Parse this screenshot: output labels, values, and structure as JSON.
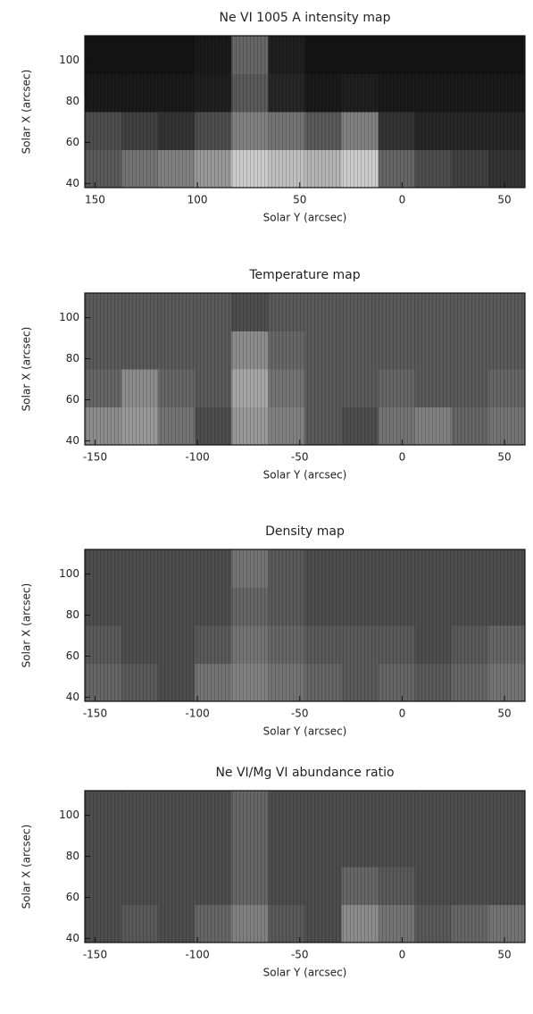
{
  "chart_data": [
    {
      "type": "heatmap",
      "title": "Ne VI 1005 A intensity map",
      "x_label": "Solar Y (arcsec)",
      "y_label": "Solar X (arcsec)",
      "xlim": [
        -155,
        60
      ],
      "ylim": [
        38,
        112
      ],
      "xticks": [
        {
          "value": -150,
          "label": "150"
        },
        {
          "value": -100,
          "label": "100"
        },
        {
          "value": -50,
          "label": "50"
        },
        0,
        50
      ],
      "yticks": [
        40,
        60,
        80,
        100
      ],
      "z": [
        [
          0.35,
          0.45,
          0.5,
          0.6,
          0.8,
          0.75,
          0.7,
          0.8,
          0.4,
          0.3,
          0.25,
          0.2
        ],
        [
          0.3,
          0.25,
          0.2,
          0.3,
          0.5,
          0.45,
          0.35,
          0.5,
          0.2,
          0.15,
          0.15,
          0.15
        ],
        [
          0.1,
          0.1,
          0.1,
          0.12,
          0.35,
          0.15,
          0.1,
          0.12,
          0.1,
          0.1,
          0.1,
          0.1
        ],
        [
          0.08,
          0.08,
          0.08,
          0.1,
          0.4,
          0.12,
          0.08,
          0.08,
          0.08,
          0.08,
          0.08,
          0.08
        ]
      ]
    },
    {
      "type": "heatmap",
      "title": "Temperature map",
      "x_label": "Solar Y (arcsec)",
      "y_label": "Solar X (arcsec)",
      "xlim": [
        -155,
        60
      ],
      "ylim": [
        38,
        112
      ],
      "xticks": [
        -150,
        -100,
        -50,
        0,
        50
      ],
      "yticks": [
        40,
        60,
        80,
        100
      ],
      "z": [
        [
          0.55,
          0.6,
          0.45,
          0.3,
          0.6,
          0.5,
          0.35,
          0.3,
          0.45,
          0.5,
          0.4,
          0.45
        ],
        [
          0.4,
          0.55,
          0.4,
          0.35,
          0.65,
          0.45,
          0.35,
          0.35,
          0.4,
          0.35,
          0.35,
          0.4
        ],
        [
          0.35,
          0.35,
          0.35,
          0.35,
          0.55,
          0.4,
          0.35,
          0.35,
          0.35,
          0.35,
          0.35,
          0.35
        ],
        [
          0.35,
          0.35,
          0.35,
          0.35,
          0.3,
          0.35,
          0.35,
          0.35,
          0.35,
          0.35,
          0.35,
          0.35
        ]
      ]
    },
    {
      "type": "heatmap",
      "title": "Density map",
      "x_label": "Solar Y (arcsec)",
      "y_label": "Solar X (arcsec)",
      "xlim": [
        -155,
        60
      ],
      "ylim": [
        38,
        112
      ],
      "xticks": [
        -150,
        -100,
        -50,
        0,
        50
      ],
      "yticks": [
        40,
        60,
        80,
        100
      ],
      "z": [
        [
          0.4,
          0.35,
          0.3,
          0.45,
          0.5,
          0.45,
          0.4,
          0.35,
          0.4,
          0.35,
          0.4,
          0.45
        ],
        [
          0.35,
          0.3,
          0.3,
          0.35,
          0.45,
          0.4,
          0.35,
          0.35,
          0.35,
          0.3,
          0.35,
          0.4
        ],
        [
          0.3,
          0.3,
          0.3,
          0.3,
          0.4,
          0.35,
          0.3,
          0.3,
          0.3,
          0.3,
          0.3,
          0.3
        ],
        [
          0.3,
          0.3,
          0.3,
          0.3,
          0.45,
          0.35,
          0.3,
          0.3,
          0.3,
          0.3,
          0.3,
          0.3
        ]
      ]
    },
    {
      "type": "heatmap",
      "title": "Ne VI/Mg VI abundance ratio",
      "x_label": "Solar Y (arcsec)",
      "y_label": "Solar X (arcsec)",
      "xlim": [
        -155,
        60
      ],
      "ylim": [
        38,
        112
      ],
      "xticks": [
        -150,
        -100,
        -50,
        0,
        50
      ],
      "yticks": [
        40,
        60,
        80,
        100
      ],
      "z": [
        [
          0.3,
          0.35,
          0.3,
          0.4,
          0.5,
          0.35,
          0.3,
          0.55,
          0.45,
          0.35,
          0.4,
          0.45
        ],
        [
          0.3,
          0.3,
          0.3,
          0.3,
          0.4,
          0.3,
          0.3,
          0.4,
          0.35,
          0.3,
          0.3,
          0.3
        ],
        [
          0.3,
          0.3,
          0.3,
          0.3,
          0.4,
          0.3,
          0.3,
          0.3,
          0.3,
          0.3,
          0.3,
          0.3
        ],
        [
          0.3,
          0.3,
          0.3,
          0.3,
          0.4,
          0.3,
          0.3,
          0.3,
          0.3,
          0.3,
          0.3,
          0.3
        ]
      ]
    }
  ]
}
